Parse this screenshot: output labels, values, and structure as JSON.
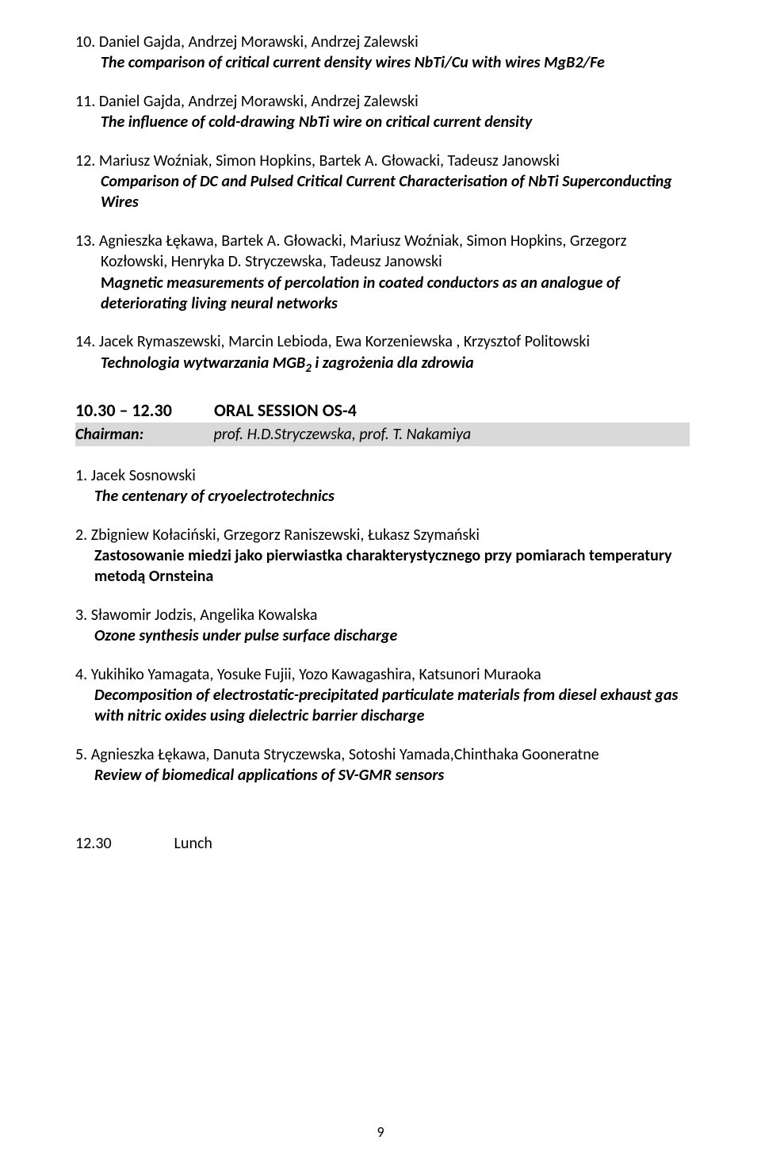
{
  "entries_top": [
    {
      "num": "10.",
      "authors": "Daniel Gajda, Andrzej Morawski, Andrzej Zalewski",
      "title": "The comparison of critical current density wires NbTi/Cu with wires MgB2/Fe",
      "italic": true
    },
    {
      "num": "11.",
      "authors": "Daniel Gajda, Andrzej Morawski, Andrzej Zalewski",
      "title": "The influence of cold-drawing NbTi wire on critical current density",
      "italic": true
    },
    {
      "num": "12.",
      "authors": "Mariusz Woźniak, Simon Hopkins, Bartek A. Głowacki, Tadeusz Janowski",
      "title": "Comparison of DC and Pulsed Critical Current Characterisation of NbTi Superconducting  Wires",
      "italic": true
    },
    {
      "num": "13.",
      "authors": "Agnieszka Łękawa, Bartek  A. Głowacki, Mariusz Woźniak, Simon Hopkins, Grzegorz  Kozłowski, Henryka D. Stryczewska, Tadeusz Janowski",
      "title": "Magnetic measurements of percolation in coated conductors as an analogue of deteriorating living neural networks",
      "italic": true
    },
    {
      "num": "14.",
      "authors": "Jacek Rymaszewski, Marcin Lebioda, Ewa Korzeniewska , Krzysztof Politowski",
      "title_html": "Technologia wytwarzania MGB<sub>2</sub> i zagrożenia dla zdrowia",
      "italic": true
    }
  ],
  "session": {
    "time": "10.30 – 12.30",
    "label": "ORAL SESSION OS-4",
    "chair_label": "Chairman:",
    "chair_names": "prof. H.D.Stryczewska, prof. T. Nakamiya"
  },
  "entries_bottom": [
    {
      "num": "1.",
      "authors": "Jacek Sosnowski",
      "title": "The centenary of cryoelectrotechnics",
      "italic": true
    },
    {
      "num": "2.",
      "authors": "Zbigniew Kołaciński, Grzegorz Raniszewski, Łukasz Szymański",
      "title": "Zastosowanie miedzi jako pierwiastka charakterystycznego przy pomiarach temperatury metodą Ornsteina",
      "italic": false
    },
    {
      "num": "3.",
      "authors": "Sławomir Jodzis, Angelika Kowalska",
      "title": "Ozone synthesis under pulse surface discharge",
      "italic": true
    },
    {
      "num": "4.",
      "authors": "Yukihiko Yamagata, Yosuke Fujii, Yozo Kawagashira, Katsunori Muraoka",
      "title": "Decomposition of electrostatic-precipitated particulate materials from diesel exhaust gas with nitric oxides using  dielectric barrier discharge",
      "italic": true
    },
    {
      "num": "5.",
      "authors": "Agnieszka Łękawa, Danuta Stryczewska, Sotoshi Yamada,Chinthaka Gooneratne",
      "title": "Review of biomedical applications of SV-GMR sensors",
      "italic": true
    }
  ],
  "lunch": {
    "time": "12.30",
    "label": "Lunch"
  },
  "pagenum": "9"
}
